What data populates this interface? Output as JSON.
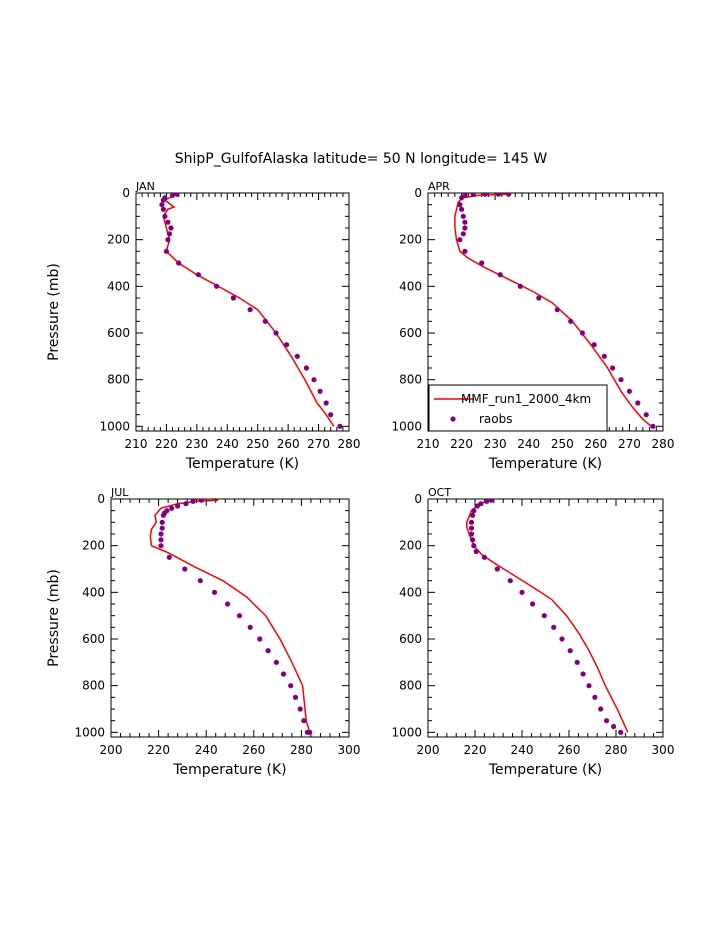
{
  "title": "ShipP_GulfofAlaska  latitude= 50 N longitude= 145 W",
  "colors": {
    "model": "#ff0000",
    "obs": "#800080",
    "axis": "#000000"
  },
  "legend": {
    "model_label": "MMF_run1_2000_4km",
    "obs_label": "raobs",
    "placement": "lower-right of APR panel"
  },
  "chart_data": [
    {
      "type": "line",
      "panel": "JAN",
      "xlabel": "Temperature (K)",
      "ylabel": "Pressure (mb)",
      "xlim": [
        210,
        280
      ],
      "ylim": [
        1020,
        0
      ],
      "xticks": [
        210,
        220,
        230,
        240,
        250,
        260,
        270,
        280
      ],
      "yticks": [
        0,
        200,
        400,
        600,
        800,
        1000
      ],
      "series": [
        {
          "name": "MMF_run1_2000_4km",
          "kind": "line",
          "x": [
            223.5,
            219.5,
            222.5,
            220.5,
            219.0,
            220.0,
            221.0,
            220.0,
            224.0,
            230.0,
            237.0,
            244.0,
            250.0,
            256.0,
            261.0,
            265.5,
            269.5,
            272.5,
            275.0
          ],
          "y": [
            5,
            30,
            60,
            70,
            100,
            150,
            200,
            250,
            300,
            350,
            400,
            450,
            500,
            600,
            700,
            800,
            900,
            950,
            1000
          ]
        },
        {
          "name": "raobs",
          "kind": "scatter",
          "x": [
            223.5,
            222.0,
            219.5,
            219.0,
            218.5,
            219.0,
            219.5,
            220.5,
            221.5,
            221.0,
            220.5,
            220.0,
            224.0,
            230.5,
            236.5,
            242.0,
            247.5,
            252.5,
            256.0,
            259.5,
            263.0,
            266.0,
            268.5,
            270.5,
            272.5,
            274.0,
            277.0
          ],
          "y": [
            5,
            10,
            20,
            30,
            50,
            70,
            100,
            125,
            150,
            175,
            200,
            250,
            300,
            350,
            400,
            450,
            500,
            550,
            600,
            650,
            700,
            750,
            800,
            850,
            900,
            950,
            1000
          ]
        }
      ]
    },
    {
      "type": "line",
      "panel": "APR",
      "xlabel": "Temperature (K)",
      "ylabel": "",
      "xlim": [
        210,
        280
      ],
      "ylim": [
        1020,
        0
      ],
      "xticks": [
        210,
        220,
        230,
        240,
        250,
        260,
        270,
        280
      ],
      "yticks": [
        0,
        200,
        400,
        600,
        800,
        1000
      ],
      "series": [
        {
          "name": "MMF_run1_2000_4km",
          "kind": "line",
          "x": [
            234.0,
            225.0,
            220.5,
            219.0,
            218.0,
            218.0,
            218.5,
            219.5,
            222.0,
            227.0,
            234.0,
            241.0,
            247.0,
            253.0,
            258.5,
            263.5,
            267.5,
            271.0,
            274.0,
            276.5
          ],
          "y": [
            5,
            10,
            20,
            40,
            100,
            150,
            200,
            250,
            280,
            320,
            370,
            420,
            470,
            550,
            650,
            750,
            850,
            920,
            970,
            1000
          ]
        },
        {
          "name": "raobs",
          "kind": "scatter",
          "x": [
            234.0,
            231.0,
            227.0,
            223.5,
            221.0,
            220.0,
            219.5,
            220.0,
            220.5,
            221.0,
            221.0,
            220.5,
            219.5,
            221.0,
            226.0,
            231.5,
            237.5,
            243.0,
            248.5,
            252.5,
            256.0,
            259.5,
            262.5,
            265.0,
            267.5,
            270.0,
            272.5,
            275.0,
            277.0
          ],
          "y": [
            5,
            5,
            5,
            5,
            10,
            20,
            50,
            70,
            100,
            125,
            150,
            175,
            200,
            250,
            300,
            350,
            400,
            450,
            500,
            550,
            600,
            650,
            700,
            750,
            800,
            850,
            900,
            950,
            1000
          ]
        }
      ]
    },
    {
      "type": "line",
      "panel": "JUL",
      "xlabel": "Temperature (K)",
      "ylabel": "Pressure (mb)",
      "xlim": [
        200,
        300
      ],
      "ylim": [
        1020,
        0
      ],
      "xticks": [
        200,
        220,
        240,
        260,
        280,
        300
      ],
      "yticks": [
        0,
        200,
        400,
        600,
        800,
        1000
      ],
      "series": [
        {
          "name": "MMF_run1_2000_4km",
          "kind": "line",
          "x": [
            245.0,
            236.0,
            228.0,
            221.0,
            218.5,
            219.0,
            217.0,
            216.5,
            217.0,
            224.0,
            235.0,
            247.0,
            257.0,
            265.0,
            271.0,
            276.0,
            280.5,
            281.5,
            282.0,
            283.5
          ],
          "y": [
            5,
            10,
            20,
            40,
            70,
            100,
            130,
            160,
            200,
            230,
            290,
            350,
            420,
            500,
            600,
            700,
            800,
            900,
            950,
            1000
          ]
        },
        {
          "name": "raobs",
          "kind": "scatter",
          "x": [
            238.0,
            234.5,
            231.5,
            228.0,
            225.5,
            223.5,
            222.5,
            222.0,
            221.5,
            221.5,
            221.0,
            221.0,
            221.0,
            224.5,
            231.0,
            237.5,
            243.5,
            249.0,
            254.0,
            258.5,
            262.5,
            266.0,
            269.5,
            272.5,
            275.5,
            277.5,
            279.5,
            281.0,
            282.5,
            283.5
          ],
          "y": [
            5,
            10,
            20,
            30,
            40,
            50,
            60,
            70,
            100,
            125,
            150,
            175,
            200,
            250,
            300,
            350,
            400,
            450,
            500,
            550,
            600,
            650,
            700,
            750,
            800,
            850,
            900,
            950,
            1000,
            1000
          ]
        }
      ]
    },
    {
      "type": "line",
      "panel": "OCT",
      "xlabel": "Temperature (K)",
      "ylabel": "",
      "xlim": [
        200,
        300
      ],
      "ylim": [
        1020,
        0
      ],
      "xticks": [
        200,
        220,
        240,
        260,
        280,
        300
      ],
      "yticks": [
        0,
        200,
        400,
        600,
        800,
        1000
      ],
      "series": [
        {
          "name": "MMF_run1_2000_4km",
          "kind": "line",
          "x": [
            226.5,
            222.0,
            218.5,
            216.5,
            216.5,
            217.5,
            219.5,
            223.0,
            229.0,
            237.0,
            245.0,
            252.5,
            259.0,
            264.5,
            268.5,
            272.0,
            275.5,
            280.5,
            285.0
          ],
          "y": [
            5,
            20,
            50,
            100,
            120,
            150,
            200,
            240,
            280,
            330,
            380,
            430,
            500,
            580,
            650,
            720,
            800,
            900,
            1000
          ]
        },
        {
          "name": "raobs",
          "kind": "scatter",
          "x": [
            227.0,
            225.0,
            222.5,
            221.0,
            219.5,
            219.0,
            218.5,
            218.5,
            218.5,
            219.0,
            219.5,
            220.5,
            224.0,
            229.5,
            235.0,
            240.0,
            244.5,
            249.5,
            253.5,
            257.0,
            260.5,
            263.5,
            266.0,
            268.5,
            271.0,
            273.5,
            276.0,
            279.0,
            282.0
          ],
          "y": [
            5,
            10,
            20,
            30,
            50,
            70,
            100,
            125,
            150,
            175,
            200,
            225,
            250,
            300,
            350,
            400,
            450,
            500,
            550,
            600,
            650,
            700,
            750,
            800,
            850,
            900,
            950,
            975,
            1000
          ]
        }
      ]
    }
  ]
}
